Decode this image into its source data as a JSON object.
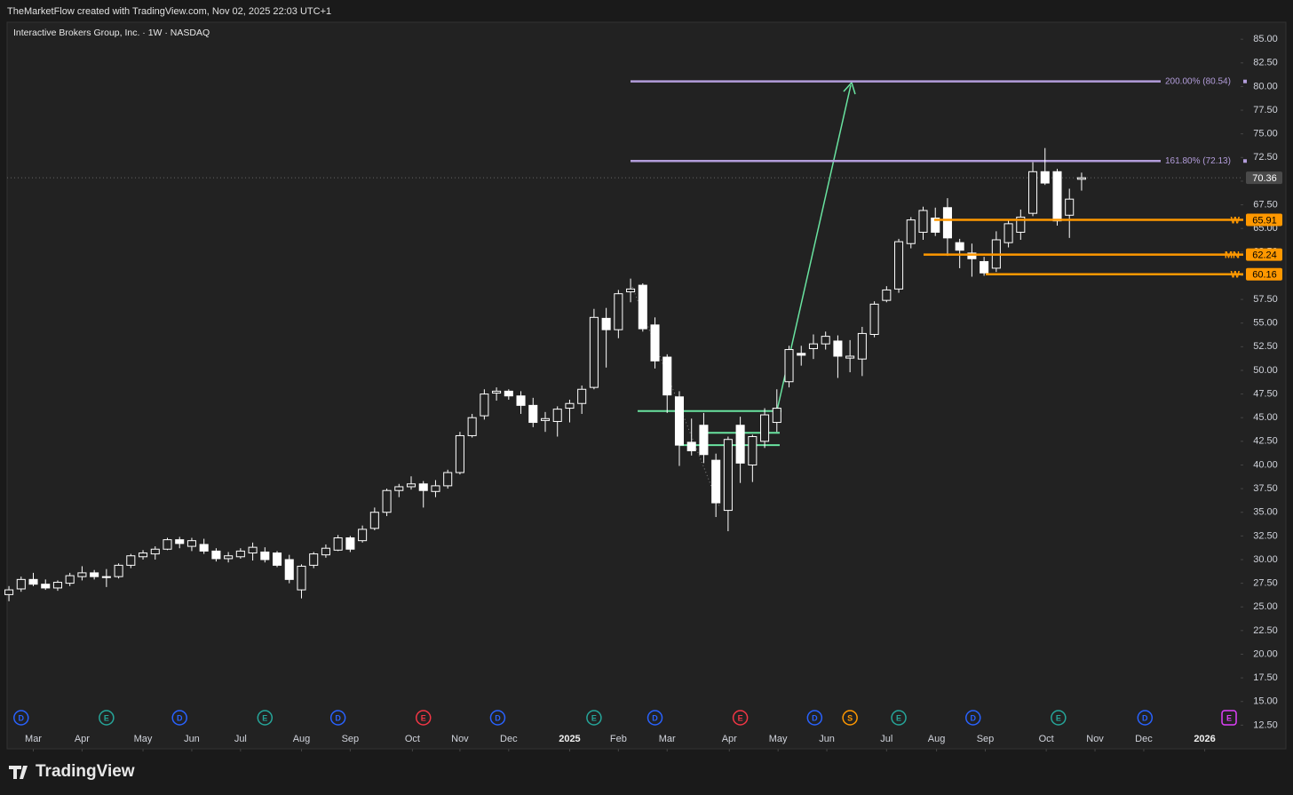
{
  "chart_data": {
    "type": "candlestick",
    "attribution": "TheMarketFlow created with TradingView.com, Nov 02, 2025 22:03 UTC+1",
    "title": "Interactive Brokers Group, Inc. · 1W · NASDAQ",
    "brand": "TradingView",
    "up_color": "#222222",
    "down_color": "#ffffff",
    "open": [
      26.3,
      26.9,
      27.9,
      27.4,
      27.0,
      27.5,
      28.2,
      28.6,
      28.2,
      28.2,
      29.4,
      30.3,
      30.6,
      31.1,
      32.1,
      31.4,
      31.6,
      30.9,
      30.1,
      30.3,
      30.7,
      30.8,
      30.7,
      30.0,
      26.8,
      29.4,
      30.5,
      31.0,
      32.3,
      32.0,
      33.3,
      35.0,
      37.3,
      37.7,
      38.0,
      37.2,
      37.8,
      39.2,
      43.1,
      45.2,
      47.6,
      47.8,
      47.3,
      46.3,
      44.7,
      44.6,
      46.0,
      46.5,
      48.2,
      55.5,
      54.3,
      58.3,
      59.0,
      54.8,
      51.4,
      47.2,
      42.4,
      44.2,
      40.5,
      35.2,
      44.2,
      40.0,
      42.5,
      44.5,
      48.8,
      51.8,
      52.3,
      52.8,
      53.1,
      51.3,
      51.2,
      53.8,
      57.4,
      58.6,
      63.4,
      64.6,
      66.1,
      67.2,
      63.5,
      62.4,
      61.5,
      60.8,
      63.5,
      64.6,
      66.6,
      71.0,
      71.0,
      66.4,
      70.2
    ],
    "high": [
      27.2,
      28.2,
      28.6,
      27.9,
      27.8,
      28.6,
      29.3,
      28.9,
      29.0,
      29.6,
      30.6,
      31.0,
      31.4,
      32.3,
      32.4,
      32.3,
      32.2,
      31.2,
      30.8,
      31.2,
      31.8,
      31.3,
      30.9,
      30.5,
      29.5,
      30.8,
      31.6,
      32.6,
      32.5,
      33.6,
      35.5,
      37.5,
      38.0,
      38.8,
      38.3,
      38.4,
      39.5,
      43.5,
      45.4,
      48.0,
      48.2,
      48.0,
      47.8,
      47.1,
      45.6,
      46.2,
      46.9,
      48.4,
      56.5,
      56.6,
      58.5,
      59.7,
      59.2,
      55.6,
      51.7,
      47.8,
      44.9,
      45.5,
      41.2,
      43.0,
      45.1,
      43.2,
      46.0,
      48.0,
      52.6,
      52.6,
      53.8,
      54.1,
      53.7,
      53.2,
      54.6,
      57.3,
      58.9,
      63.9,
      66.2,
      67.3,
      67.2,
      68.2,
      63.9,
      63.4,
      62.0,
      64.7,
      66.0,
      67.0,
      72.0,
      73.5,
      71.3,
      69.2,
      70.9
    ],
    "low": [
      25.6,
      26.6,
      27.2,
      26.8,
      26.7,
      27.2,
      27.8,
      27.9,
      27.1,
      28.0,
      29.1,
      30.0,
      30.0,
      31.0,
      31.2,
      30.9,
      30.6,
      29.8,
      29.7,
      30.1,
      29.9,
      29.7,
      29.2,
      27.5,
      25.9,
      29.1,
      30.2,
      30.9,
      30.8,
      31.8,
      33.1,
      34.6,
      36.6,
      37.4,
      35.5,
      36.6,
      37.5,
      39.0,
      42.9,
      44.8,
      46.8,
      46.9,
      45.4,
      44.0,
      43.5,
      43.0,
      44.5,
      45.4,
      48.0,
      50.3,
      53.4,
      57.2,
      54.1,
      50.2,
      45.5,
      39.9,
      41.0,
      40.2,
      34.5,
      33.0,
      38.1,
      38.2,
      41.8,
      43.5,
      48.2,
      50.5,
      51.2,
      52.2,
      49.2,
      49.8,
      49.4,
      53.5,
      57.2,
      58.2,
      62.9,
      63.8,
      64.2,
      62.1,
      60.8,
      59.9,
      60.0,
      60.4,
      63.0,
      63.8,
      66.3,
      69.6,
      65.3,
      64.0,
      69.0
    ],
    "close": [
      26.8,
      27.9,
      27.4,
      27.0,
      27.6,
      28.3,
      28.6,
      28.2,
      28.1,
      29.4,
      30.4,
      30.7,
      31.1,
      32.1,
      31.7,
      32.0,
      30.9,
      30.1,
      30.4,
      30.9,
      31.3,
      30.0,
      29.4,
      27.9,
      29.3,
      30.6,
      31.2,
      32.3,
      31.1,
      33.2,
      35.0,
      37.3,
      37.7,
      38.0,
      37.3,
      37.8,
      39.2,
      43.1,
      45.0,
      47.5,
      47.8,
      47.3,
      46.3,
      44.5,
      44.9,
      45.9,
      46.5,
      48.0,
      55.6,
      54.3,
      58.1,
      58.6,
      54.4,
      51.0,
      47.4,
      42.1,
      41.5,
      41.1,
      36.0,
      42.7,
      40.2,
      43.0,
      45.3,
      46.0,
      52.2,
      51.6,
      52.8,
      53.6,
      51.5,
      51.5,
      53.9,
      57.0,
      58.5,
      63.6,
      65.9,
      66.9,
      64.6,
      64.0,
      62.7,
      61.8,
      60.3,
      63.8,
      65.5,
      66.2,
      71.0,
      69.8,
      65.8,
      68.1,
      70.36
    ],
    "xlim": [
      -0.15,
      100.9
    ],
    "ylim": [
      10,
      86.8
    ],
    "yticks": [
      {
        "value": 12.5,
        "label": "12.50"
      },
      {
        "value": 15,
        "label": "15.00"
      },
      {
        "value": 17.5,
        "label": "17.50"
      },
      {
        "value": 20,
        "label": "20.00"
      },
      {
        "value": 22.5,
        "label": "22.50"
      },
      {
        "value": 25,
        "label": "25.00"
      },
      {
        "value": 27.5,
        "label": "27.50"
      },
      {
        "value": 30,
        "label": "30.00"
      },
      {
        "value": 32.5,
        "label": "32.50"
      },
      {
        "value": 35,
        "label": "35.00"
      },
      {
        "value": 37.5,
        "label": "37.50"
      },
      {
        "value": 40,
        "label": "40.00"
      },
      {
        "value": 42.5,
        "label": "42.50"
      },
      {
        "value": 45,
        "label": "45.00"
      },
      {
        "value": 47.5,
        "label": "47.50"
      },
      {
        "value": 50,
        "label": "50.00"
      },
      {
        "value": 52.5,
        "label": "52.50"
      },
      {
        "value": 55,
        "label": "55.00"
      },
      {
        "value": 57.5,
        "label": "57.50"
      },
      {
        "value": 60,
        "label": "60.00"
      },
      {
        "value": 62.5,
        "label": "62.50"
      },
      {
        "value": 65,
        "label": "65.00"
      },
      {
        "value": 67.5,
        "label": "67.50"
      },
      {
        "value": 70,
        "label": "70.00"
      },
      {
        "value": 72.5,
        "label": "72.50"
      },
      {
        "value": 75,
        "label": "75.00"
      },
      {
        "value": 77.5,
        "label": "77.50"
      },
      {
        "value": 80,
        "label": "80.00"
      },
      {
        "value": 82.5,
        "label": "82.50"
      },
      {
        "value": 85,
        "label": "85.00"
      }
    ],
    "xticks": [
      {
        "value": 2.0,
        "label": "Mar"
      },
      {
        "value": 6.0,
        "label": "Apr"
      },
      {
        "value": 11.0,
        "label": "May"
      },
      {
        "value": 15.0,
        "label": "Jun"
      },
      {
        "value": 19.0,
        "label": "Jul"
      },
      {
        "value": 24.0,
        "label": "Aug"
      },
      {
        "value": 28.0,
        "label": "Sep"
      },
      {
        "value": 33.1,
        "label": "Oct"
      },
      {
        "value": 37.0,
        "label": "Nov"
      },
      {
        "value": 41.0,
        "label": "Dec"
      },
      {
        "value": 46.0,
        "label": "2025"
      },
      {
        "value": 50.0,
        "label": "Feb"
      },
      {
        "value": 54.0,
        "label": "Mar"
      },
      {
        "value": 59.1,
        "label": "Apr"
      },
      {
        "value": 63.1,
        "label": "May"
      },
      {
        "value": 67.1,
        "label": "Jun"
      },
      {
        "value": 72.0,
        "label": "Jul"
      },
      {
        "value": 76.1,
        "label": "Aug"
      },
      {
        "value": 80.1,
        "label": "Sep"
      },
      {
        "value": 85.1,
        "label": "Oct"
      },
      {
        "value": 89.1,
        "label": "Nov"
      },
      {
        "value": 93.1,
        "label": "Dec"
      },
      {
        "value": 98.1,
        "label": "2026"
      }
    ],
    "fib_levels": [
      {
        "value": 80.54,
        "label": "200.00% (80.54)"
      },
      {
        "value": 72.13,
        "label": "161.80% (72.13)"
      }
    ],
    "fib_color": "#b39ddb",
    "key_levels": [
      {
        "value": 65.91,
        "tag": "W"
      },
      {
        "value": 62.24,
        "tag": "MN"
      },
      {
        "value": 60.16,
        "tag": "W"
      }
    ],
    "key_color": "#ff9800",
    "green_levels": [
      45.7,
      43.4,
      42.1
    ],
    "green_color": "#69e3a0",
    "events": [
      {
        "label": "D",
        "x": 1.0,
        "color": "#2962ff"
      },
      {
        "label": "E",
        "x": 8.0,
        "color": "#26a69a"
      },
      {
        "label": "D",
        "x": 14.0,
        "color": "#2962ff"
      },
      {
        "label": "E",
        "x": 21.0,
        "color": "#26a69a"
      },
      {
        "label": "D",
        "x": 27.0,
        "color": "#2962ff"
      },
      {
        "label": "E",
        "x": 34.0,
        "color": "#f23645"
      },
      {
        "label": "D",
        "x": 40.1,
        "color": "#2962ff"
      },
      {
        "label": "E",
        "x": 48.0,
        "color": "#26a69a"
      },
      {
        "label": "D",
        "x": 53.0,
        "color": "#2962ff"
      },
      {
        "label": "E",
        "x": 60.0,
        "color": "#f23645"
      },
      {
        "label": "D",
        "x": 66.1,
        "color": "#2962ff"
      },
      {
        "label": "S",
        "x": 69.0,
        "color": "#ff9800"
      },
      {
        "label": "E",
        "x": 73.0,
        "color": "#26a69a"
      },
      {
        "label": "D",
        "x": 79.1,
        "color": "#2962ff"
      },
      {
        "label": "E",
        "x": 86.1,
        "color": "#26a69a"
      },
      {
        "label": "D",
        "x": 93.2,
        "color": "#2962ff"
      },
      {
        "label": "E",
        "x": 100.1,
        "color": "#e040fb"
      }
    ]
  }
}
